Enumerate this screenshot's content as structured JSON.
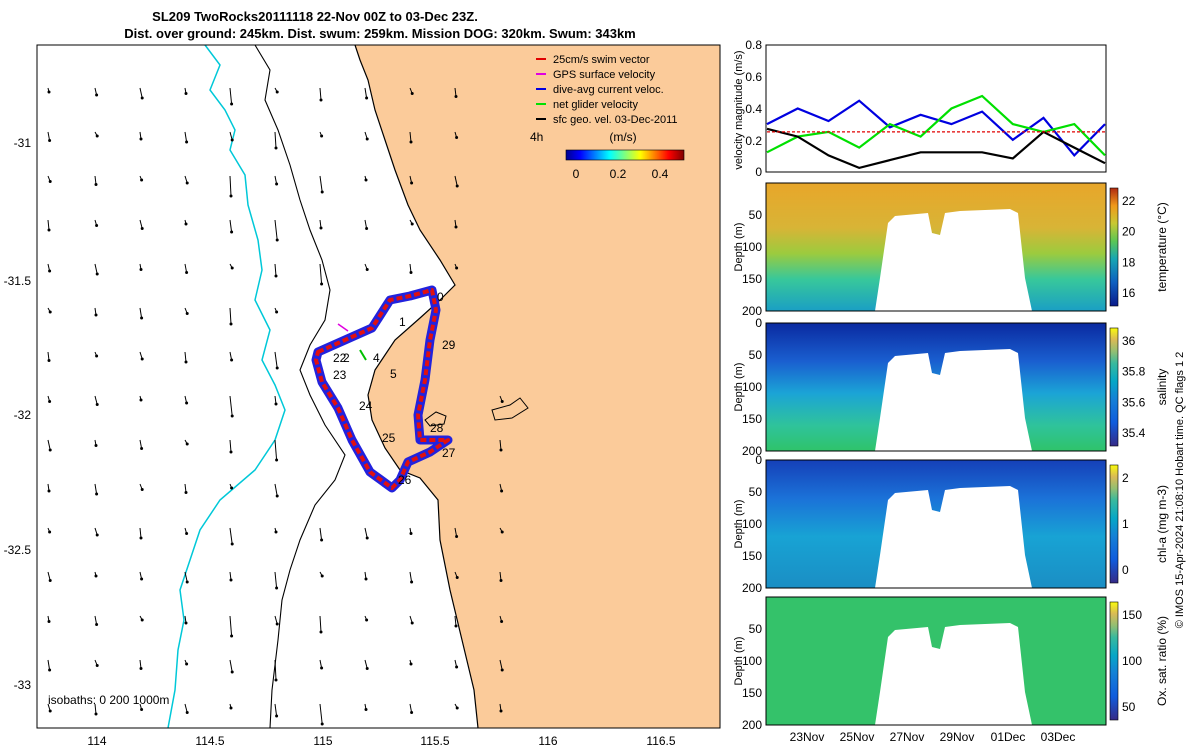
{
  "title": {
    "line1": "SL209 TwoRocks20111118 22-Nov 00Z to 03-Dec 23Z.",
    "line2": "Dist. over ground: 245km. Dist. swum: 259km. Mission DOG: 320km. Swum: 343km"
  },
  "map": {
    "xticks": [
      "114",
      "114.5",
      "115",
      "115.5",
      "116",
      "116.5"
    ],
    "yticks": [
      "-31",
      "-31.5",
      "-32",
      "-32.5",
      "-33"
    ],
    "legend": [
      "25cm/s swim vector",
      "GPS surface velocity",
      "dive-avg current veloc.",
      "net glider velocity",
      "sfc geo. vel. 03-Dec-2011"
    ],
    "legend_colors": [
      "#e00000",
      "#e000e0",
      "#0000e0",
      "#00e000",
      "#000000"
    ],
    "colorbar_label": "(m/s)",
    "colorbar_ticks": [
      "0",
      "0.2",
      "0.4"
    ],
    "time_label": "4h",
    "isobaths_label": "isobaths: 0   200  1000m",
    "day_labels": [
      "0",
      "1",
      "29",
      "2",
      "4",
      "22",
      "23",
      "5",
      "24",
      "25",
      "28",
      "27",
      "26"
    ]
  },
  "velocity_panel": {
    "ylabel": "velocity magnitude (m/s)",
    "yticks": [
      "0",
      "0.2",
      "0.4",
      "0.6",
      "0.8"
    ]
  },
  "panels": [
    {
      "cb_label": "temperature (°C)",
      "cb_ticks": [
        "22",
        "20",
        "18",
        "16"
      ],
      "yticks": [
        "50",
        "100",
        "150",
        "200"
      ],
      "ylabel": "Depth (m)"
    },
    {
      "cb_label": "salinity",
      "cb_ticks": [
        "36",
        "35.8",
        "35.6",
        "35.4"
      ],
      "yticks": [
        "0",
        "50",
        "100",
        "150",
        "200"
      ],
      "ylabel": "Depth (m)"
    },
    {
      "cb_label": "chl-a (mg m-3)",
      "cb_ticks": [
        "2",
        "1",
        "0"
      ],
      "yticks": [
        "0",
        "50",
        "100",
        "150",
        "200"
      ],
      "ylabel": "Depth (m)"
    },
    {
      "cb_label": "Ox. sat. ratio (%)",
      "cb_ticks": [
        "150",
        "100",
        "50"
      ],
      "yticks": [
        "50",
        "100",
        "150",
        "200"
      ],
      "ylabel": "Depth (m)"
    }
  ],
  "time_ticks": [
    "23Nov",
    "25Nov",
    "27Nov",
    "29Nov",
    "01Dec",
    "03Dec"
  ],
  "side_note": "© IMOS 15-Apr-2024 21:08:10 Hobart time. QC flags 1  2",
  "chart_data": [
    {
      "type": "line",
      "title": "velocity magnitude",
      "xlabel": "",
      "ylabel": "velocity magnitude (m/s)",
      "ylim": [
        0,
        0.8
      ],
      "x": [
        0,
        1,
        2,
        3,
        4,
        5,
        6,
        7,
        8,
        9,
        10,
        11
      ],
      "series": [
        {
          "name": "dive-avg current",
          "color": "#0000e0",
          "values": [
            0.3,
            0.4,
            0.32,
            0.45,
            0.28,
            0.36,
            0.3,
            0.38,
            0.2,
            0.34,
            0.1,
            0.3
          ]
        },
        {
          "name": "net glider",
          "color": "#00e000",
          "values": [
            0.12,
            0.22,
            0.25,
            0.15,
            0.3,
            0.22,
            0.4,
            0.48,
            0.3,
            0.25,
            0.3,
            0.1
          ]
        },
        {
          "name": "sfc geo",
          "color": "#000000",
          "values": [
            0.27,
            0.22,
            0.1,
            0.02,
            0.07,
            0.12,
            0.12,
            0.12,
            0.08,
            0.25,
            0.15,
            0.05
          ]
        },
        {
          "name": "swim (25 cm/s)",
          "color": "#e00000",
          "values": [
            0.25,
            0.25,
            0.25,
            0.25,
            0.25,
            0.25,
            0.25,
            0.25,
            0.25,
            0.25,
            0.25,
            0.25
          ]
        }
      ]
    },
    {
      "type": "heatmap",
      "title": "temperature",
      "ylabel": "Depth (m)",
      "ylim": [
        200,
        0
      ],
      "clim": [
        15,
        23
      ]
    },
    {
      "type": "heatmap",
      "title": "salinity",
      "ylabel": "Depth (m)",
      "ylim": [
        200,
        0
      ],
      "clim": [
        35.3,
        36.1
      ]
    },
    {
      "type": "heatmap",
      "title": "chl-a",
      "ylabel": "Depth (m)",
      "ylim": [
        200,
        0
      ],
      "clim": [
        0,
        2
      ]
    },
    {
      "type": "heatmap",
      "title": "oxygen saturation",
      "ylabel": "Depth (m)",
      "ylim": [
        200,
        0
      ],
      "clim": [
        20,
        170
      ]
    }
  ]
}
